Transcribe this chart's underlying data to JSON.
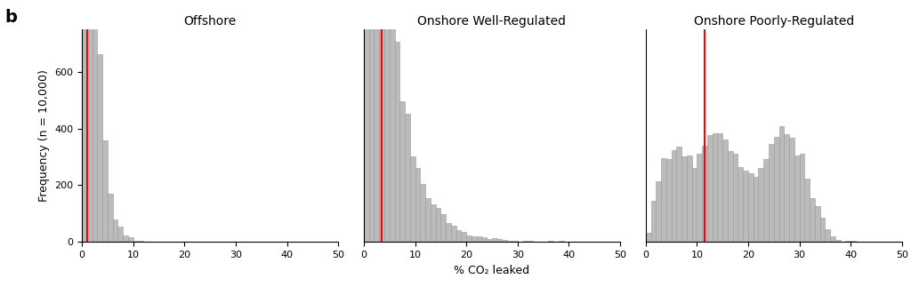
{
  "titles": [
    "Offshore",
    "Onshore Well-Regulated",
    "Onshore Poorly-Regulated"
  ],
  "red_lines": [
    1.0,
    3.5,
    11.5
  ],
  "xlim": [
    0,
    50
  ],
  "ylim": [
    0,
    750
  ],
  "yticks": [
    0,
    200,
    400,
    600
  ],
  "xticks": [
    0,
    10,
    20,
    30,
    40,
    50
  ],
  "ylabel": "Frequency (n = 10,000)",
  "xlabel": "% CO₂ leaked",
  "panel_label": "b",
  "bar_color": "#bbbbbb",
  "bar_edge_color": "#999999",
  "red_line_color": "#ff0000",
  "background_color": "#ffffff",
  "title_fontsize": 10,
  "label_fontsize": 9,
  "tick_fontsize": 8,
  "n_bins": 50,
  "seed": 12345
}
